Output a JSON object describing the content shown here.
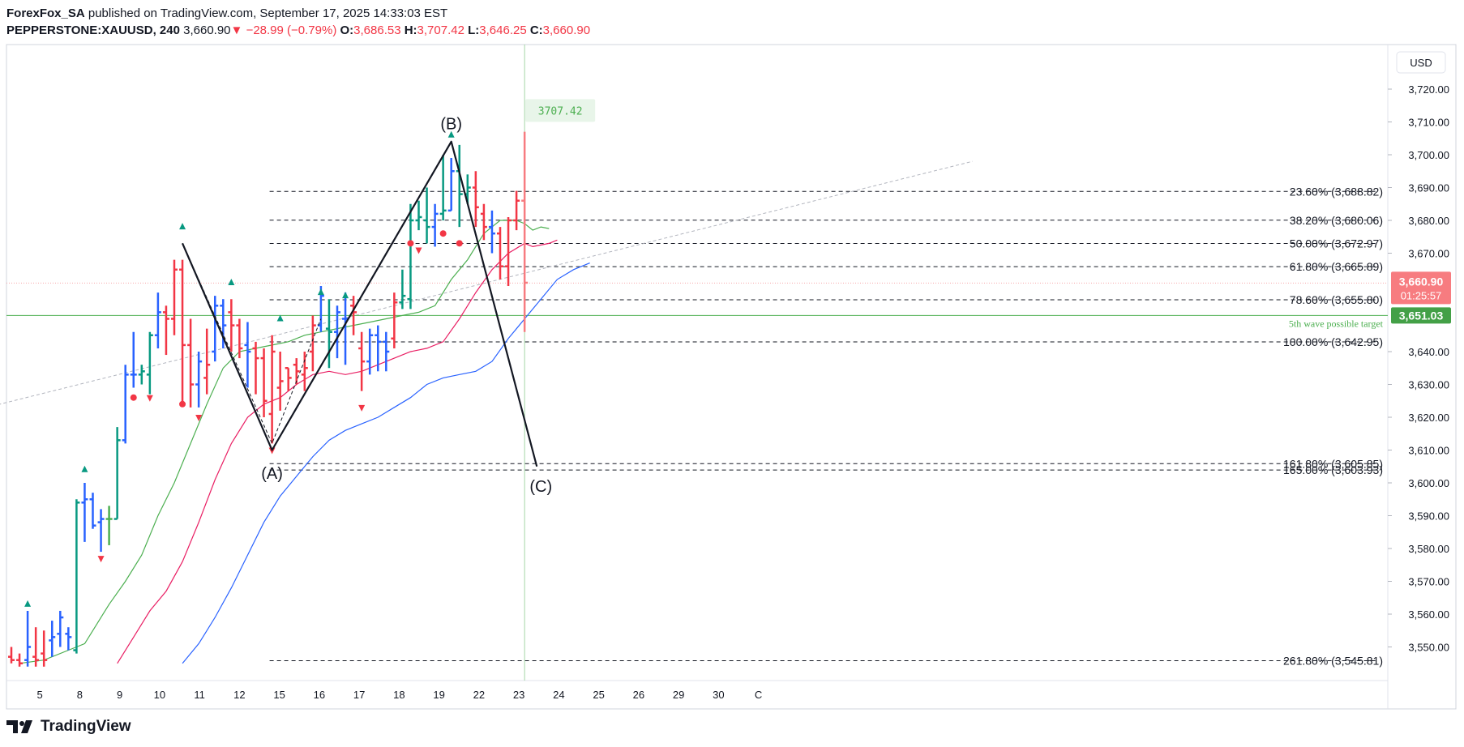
{
  "header": {
    "author": "ForexFox_SA",
    "published_text": "published on TradingView.com, September 17, 2025 14:33:03 EST",
    "symbol": "PEPPERSTONE:XAUUSD, 240",
    "last": "3,660.90",
    "down_arrow": "▼",
    "change": "−28.99 (−0.79%)",
    "o_label": "O:",
    "o": "3,686.53",
    "h_label": "H:",
    "h": "3,707.42",
    "l_label": "L:",
    "l": "3,646.25",
    "c_label": "C:",
    "c": "3,660.90"
  },
  "footer": {
    "brand": "TradingView"
  },
  "colors": {
    "up": "#089981",
    "down": "#f23645",
    "blue_bar": "#2962ff",
    "ma_fast": "#4caf50",
    "ma_mid": "#e91e63",
    "ma_slow": "#2962ff",
    "target": "#4caf50"
  },
  "chart_data": {
    "type": "line",
    "currency": "USD",
    "price_axis": {
      "ticks": [
        "3,720.00",
        "3,710.00",
        "3,700.00",
        "3,690.00",
        "3,680.00",
        "3,670.00",
        "3,640.00",
        "3,630.00",
        "3,620.00",
        "3,610.00",
        "3,600.00",
        "3,590.00",
        "3,580.00",
        "3,570.00",
        "3,560.00",
        "3,550.00"
      ],
      "tick_values": [
        3720,
        3710,
        3700,
        3690,
        3680,
        3670,
        3640,
        3630,
        3620,
        3610,
        3600,
        3590,
        3580,
        3570,
        3560,
        3550
      ],
      "range": [
        3543,
        3727
      ]
    },
    "time_axis": {
      "labels": [
        "5",
        "8",
        "9",
        "10",
        "11",
        "12",
        "15",
        "16",
        "17",
        "18",
        "19",
        "22",
        "23",
        "24",
        "25",
        "26",
        "29",
        "30",
        "C"
      ],
      "label_bars": [
        3.5,
        8.4,
        13.3,
        18.2,
        23.1,
        28,
        32.9,
        37.8,
        42.7,
        47.6,
        52.5,
        57.4,
        62.3,
        67.2,
        72.1,
        77,
        81.9,
        86.8,
        91.7
      ]
    },
    "bars": [
      {
        "o": 3547,
        "h": 3550,
        "l": 3545,
        "c": 3546,
        "col": "down"
      },
      {
        "o": 3546,
        "h": 3548,
        "l": 3544,
        "c": 3545,
        "col": "down"
      },
      {
        "o": 3546,
        "h": 3561,
        "l": 3544,
        "c": 3550,
        "col": "blue"
      },
      {
        "o": 3547,
        "h": 3556,
        "l": 3544,
        "c": 3546,
        "col": "down"
      },
      {
        "o": 3548,
        "h": 3555,
        "l": 3544,
        "c": 3546,
        "col": "down"
      },
      {
        "o": 3552,
        "h": 3558,
        "l": 3547,
        "c": 3553,
        "col": "blue"
      },
      {
        "o": 3554,
        "h": 3561,
        "l": 3550,
        "c": 3559,
        "col": "blue"
      },
      {
        "o": 3554,
        "h": 3556,
        "l": 3549,
        "c": 3553,
        "col": "blue"
      },
      {
        "o": 3549,
        "h": 3595,
        "l": 3548,
        "c": 3594,
        "col": "up"
      },
      {
        "o": 3594,
        "h": 3600,
        "l": 3582,
        "c": 3595,
        "col": "blue"
      },
      {
        "o": 3595,
        "h": 3597,
        "l": 3586,
        "c": 3587,
        "col": "blue"
      },
      {
        "o": 3588,
        "h": 3592,
        "l": 3579,
        "c": 3589,
        "col": "blue"
      },
      {
        "o": 3589,
        "h": 3593,
        "l": 3581,
        "c": 3589,
        "col": "ma_fast"
      },
      {
        "o": 3589,
        "h": 3617,
        "l": 3589,
        "c": 3613,
        "col": "up"
      },
      {
        "o": 3613,
        "h": 3636,
        "l": 3612,
        "c": 3633,
        "col": "blue"
      },
      {
        "o": 3633,
        "h": 3646,
        "l": 3629,
        "c": 3633,
        "col": "blue"
      },
      {
        "o": 3633,
        "h": 3636,
        "l": 3630,
        "c": 3634,
        "col": "up"
      },
      {
        "o": 3633,
        "h": 3646,
        "l": 3627,
        "c": 3645,
        "col": "up"
      },
      {
        "o": 3645,
        "h": 3658,
        "l": 3641,
        "c": 3652,
        "col": "blue"
      },
      {
        "o": 3652,
        "h": 3654,
        "l": 3639,
        "c": 3650,
        "col": "down"
      },
      {
        "o": 3650,
        "h": 3668,
        "l": 3645,
        "c": 3665,
        "col": "down"
      },
      {
        "o": 3665,
        "h": 3668,
        "l": 3624,
        "c": 3642,
        "col": "down"
      },
      {
        "o": 3642,
        "h": 3650,
        "l": 3623,
        "c": 3630,
        "col": "down"
      },
      {
        "o": 3630,
        "h": 3640,
        "l": 3623,
        "c": 3637,
        "col": "blue"
      },
      {
        "o": 3632,
        "h": 3647,
        "l": 3627,
        "c": 3636,
        "col": "down"
      },
      {
        "o": 3640,
        "h": 3657,
        "l": 3637,
        "c": 3654,
        "col": "blue"
      },
      {
        "o": 3654,
        "h": 3656,
        "l": 3641,
        "c": 3648,
        "col": "blue"
      },
      {
        "o": 3652,
        "h": 3656,
        "l": 3640,
        "c": 3648,
        "col": "down"
      },
      {
        "o": 3648,
        "h": 3650,
        "l": 3638,
        "c": 3641,
        "col": "down"
      },
      {
        "o": 3642,
        "h": 3649,
        "l": 3629,
        "c": 3640,
        "col": "blue"
      },
      {
        "o": 3641,
        "h": 3643,
        "l": 3627,
        "c": 3638,
        "col": "down"
      },
      {
        "o": 3638,
        "h": 3641,
        "l": 3620,
        "c": 3625,
        "col": "down"
      },
      {
        "o": 3621,
        "h": 3645,
        "l": 3612,
        "c": 3640,
        "col": "down"
      },
      {
        "o": 3629,
        "h": 3640,
        "l": 3622,
        "c": 3631,
        "col": "down"
      },
      {
        "o": 3635,
        "h": 3635,
        "l": 3628,
        "c": 3632,
        "col": "down"
      },
      {
        "o": 3636,
        "h": 3638,
        "l": 3630,
        "c": 3634,
        "col": "down"
      },
      {
        "o": 3633,
        "h": 3640,
        "l": 3628,
        "c": 3635,
        "col": "down"
      },
      {
        "o": 3640,
        "h": 3651,
        "l": 3634,
        "c": 3648,
        "col": "down"
      },
      {
        "o": 3648,
        "h": 3660,
        "l": 3646,
        "c": 3657,
        "col": "blue"
      },
      {
        "o": 3647,
        "h": 3656,
        "l": 3635,
        "c": 3646,
        "col": "up"
      },
      {
        "o": 3646,
        "h": 3654,
        "l": 3638,
        "c": 3652,
        "col": "blue"
      },
      {
        "o": 3650,
        "h": 3658,
        "l": 3636,
        "c": 3650,
        "col": "blue"
      },
      {
        "o": 3654,
        "h": 3657,
        "l": 3645,
        "c": 3652,
        "col": "down"
      },
      {
        "o": 3641,
        "h": 3646,
        "l": 3628,
        "c": 3637,
        "col": "down"
      },
      {
        "o": 3637,
        "h": 3647,
        "l": 3633,
        "c": 3645,
        "col": "blue"
      },
      {
        "o": 3645,
        "h": 3648,
        "l": 3634,
        "c": 3643,
        "col": "blue"
      },
      {
        "o": 3643,
        "h": 3646,
        "l": 3634,
        "c": 3640,
        "col": "blue"
      },
      {
        "o": 3644,
        "h": 3658,
        "l": 3641,
        "c": 3655,
        "col": "down"
      },
      {
        "o": 3655,
        "h": 3665,
        "l": 3653,
        "c": 3657,
        "col": "up"
      },
      {
        "o": 3656,
        "h": 3685,
        "l": 3653,
        "c": 3680,
        "col": "up"
      },
      {
        "o": 3680,
        "h": 3686,
        "l": 3677,
        "c": 3681,
        "col": "up"
      },
      {
        "o": 3680,
        "h": 3690,
        "l": 3673,
        "c": 3678,
        "col": "up"
      },
      {
        "o": 3678,
        "h": 3685,
        "l": 3672,
        "c": 3682,
        "col": "blue"
      },
      {
        "o": 3682,
        "h": 3700,
        "l": 3680,
        "c": 3683,
        "col": "up"
      },
      {
        "o": 3683,
        "h": 3699,
        "l": 3683,
        "c": 3695,
        "col": "blue"
      },
      {
        "o": 3695,
        "h": 3703,
        "l": 3678,
        "c": 3688,
        "col": "up"
      },
      {
        "o": 3688,
        "h": 3694,
        "l": 3685,
        "c": 3690,
        "col": "up"
      },
      {
        "o": 3690,
        "h": 3695,
        "l": 3678,
        "c": 3684,
        "col": "down"
      },
      {
        "o": 3682,
        "h": 3685,
        "l": 3674,
        "c": 3678,
        "col": "down"
      },
      {
        "o": 3678,
        "h": 3683,
        "l": 3670,
        "c": 3676,
        "col": "blue"
      },
      {
        "o": 3676,
        "h": 3678,
        "l": 3662,
        "c": 3666,
        "col": "down"
      },
      {
        "o": 3666,
        "h": 3681,
        "l": 3660,
        "c": 3680,
        "col": "down"
      },
      {
        "o": 3680,
        "h": 3689,
        "l": 3677,
        "c": 3686,
        "col": "down"
      },
      {
        "o": 3686,
        "h": 3707,
        "l": 3646,
        "c": 3661,
        "col": "down_light"
      }
    ],
    "series": [
      {
        "key": "ma_fast",
        "points": [
          [
            1,
            3545
          ],
          [
            4,
            3546
          ],
          [
            8,
            3550
          ],
          [
            9,
            3551
          ],
          [
            10,
            3555
          ],
          [
            12,
            3563
          ],
          [
            14,
            3570
          ],
          [
            16,
            3578
          ],
          [
            18,
            3590
          ],
          [
            20,
            3600
          ],
          [
            22,
            3612
          ],
          [
            24,
            3624
          ],
          [
            26,
            3635
          ],
          [
            28,
            3640
          ],
          [
            30,
            3641
          ],
          [
            32,
            3642
          ],
          [
            34,
            3643
          ],
          [
            36,
            3645
          ],
          [
            38,
            3646
          ],
          [
            40,
            3647
          ],
          [
            42,
            3648
          ],
          [
            44,
            3649
          ],
          [
            46,
            3650
          ],
          [
            48,
            3651
          ],
          [
            50,
            3652
          ],
          [
            52,
            3654
          ],
          [
            54,
            3662
          ],
          [
            56,
            3668
          ],
          [
            58,
            3676
          ],
          [
            60,
            3680
          ],
          [
            62,
            3680
          ],
          [
            63,
            3679
          ],
          [
            64,
            3677
          ],
          [
            65,
            3678
          ],
          [
            66,
            3677.5
          ]
        ]
      },
      {
        "key": "ma_mid",
        "points": [
          [
            13,
            3545
          ],
          [
            15,
            3553
          ],
          [
            17,
            3561
          ],
          [
            19,
            3567
          ],
          [
            21,
            3576
          ],
          [
            23,
            3588
          ],
          [
            25,
            3601
          ],
          [
            27,
            3612
          ],
          [
            29,
            3620
          ],
          [
            31,
            3624
          ],
          [
            33,
            3626
          ],
          [
            35,
            3630
          ],
          [
            37,
            3633
          ],
          [
            39,
            3634
          ],
          [
            41,
            3633
          ],
          [
            43,
            3634
          ],
          [
            45,
            3636
          ],
          [
            47,
            3638
          ],
          [
            49,
            3640
          ],
          [
            51,
            3641
          ],
          [
            53,
            3643
          ],
          [
            55,
            3650
          ],
          [
            57,
            3658
          ],
          [
            59,
            3665
          ],
          [
            61,
            3670
          ],
          [
            63,
            3673
          ],
          [
            64,
            3672
          ],
          [
            65,
            3672.5
          ],
          [
            66,
            3673
          ],
          [
            67,
            3674
          ]
        ]
      },
      {
        "key": "ma_slow",
        "points": [
          [
            21,
            3545
          ],
          [
            23,
            3551
          ],
          [
            25,
            3559
          ],
          [
            27,
            3568
          ],
          [
            29,
            3578
          ],
          [
            31,
            3588
          ],
          [
            33,
            3596
          ],
          [
            35,
            3602
          ],
          [
            37,
            3608
          ],
          [
            39,
            3613
          ],
          [
            41,
            3616
          ],
          [
            43,
            3618
          ],
          [
            45,
            3620
          ],
          [
            47,
            3623
          ],
          [
            49,
            3626
          ],
          [
            51,
            3630
          ],
          [
            53,
            3632
          ],
          [
            55,
            3633
          ],
          [
            57,
            3634
          ],
          [
            59,
            3637
          ],
          [
            61,
            3644
          ],
          [
            63,
            3650
          ],
          [
            65,
            3656
          ],
          [
            67,
            3662
          ],
          [
            69,
            3665
          ],
          [
            71,
            3667
          ]
        ]
      }
    ],
    "markers": {
      "tri_up": [
        [
          2,
          3563
        ],
        [
          9,
          3604
        ],
        [
          21,
          3678
        ],
        [
          27,
          3661
        ],
        [
          33,
          3650
        ],
        [
          38,
          3658
        ],
        [
          41,
          3657
        ],
        [
          54,
          3706
        ]
      ],
      "tri_down": [
        [
          11,
          3577
        ],
        [
          17,
          3626
        ],
        [
          23,
          3620
        ],
        [
          32,
          3610
        ],
        [
          43,
          3623
        ],
        [
          50,
          3671
        ]
      ],
      "dots": [
        [
          15,
          3626
        ],
        [
          21,
          3624
        ],
        [
          49,
          3673
        ],
        [
          53,
          3676
        ],
        [
          55,
          3673
        ]
      ]
    },
    "wave_line": {
      "points": [
        [
          21,
          3673
        ],
        [
          32,
          3610
        ],
        [
          54,
          3704
        ],
        [
          64.5,
          3605
        ]
      ],
      "labels": [
        {
          "text": "(A)",
          "bar": 32,
          "price": 3603
        },
        {
          "text": "(B)",
          "bar": 54,
          "price": 3709.5
        },
        {
          "text": "(C)",
          "bar": 65,
          "price": 3599
        }
      ],
      "ghost_points": [
        [
          21,
          3673
        ],
        [
          32,
          3612
        ],
        [
          38,
          3650
        ]
      ]
    },
    "trend_line": {
      "from": [
        -3,
        3623
      ],
      "to": [
        118,
        3698
      ]
    },
    "fib_levels": [
      {
        "label": "23.60% (3,688.82)",
        "value": 3688.82
      },
      {
        "label": "38.20% (3,680.06)",
        "value": 3680.06
      },
      {
        "label": "50.00% (3,672.97)",
        "value": 3672.97
      },
      {
        "label": "61.80% (3,665.89)",
        "value": 3665.89
      },
      {
        "label": "78.60% (3,655.80)",
        "value": 3655.8
      },
      {
        "label": "100.00% (3,642.95)",
        "value": 3642.95
      },
      {
        "label": "161.80% (3,605.85)",
        "value": 3605.85
      },
      {
        "label": "165.00% (3,603.93)",
        "value": 3603.93
      },
      {
        "label": "261.80% (3,545.81)",
        "value": 3545.81
      }
    ],
    "fib_start_bar": 32,
    "current_price": {
      "value": 3660.9,
      "label": "3,660.90",
      "countdown": "01:25:57"
    },
    "target": {
      "value": 3651.03,
      "label": "3,651.03",
      "text": "5th wave possible target"
    },
    "high_callout": {
      "text": "3707.42",
      "bar": 63.5,
      "price": 3713.5
    },
    "crosshair_bar": 63
  }
}
